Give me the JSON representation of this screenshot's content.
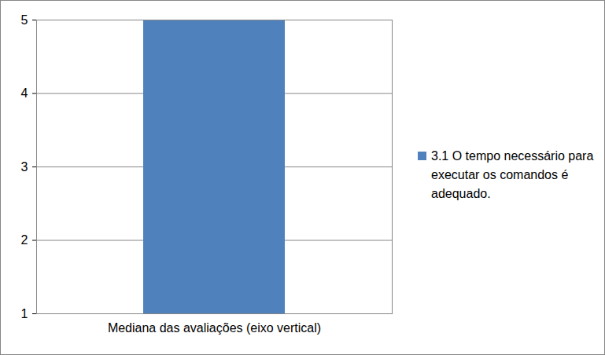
{
  "chart_data": {
    "type": "bar",
    "categories": [
      "Mediana das avaliações (eixo vertical)"
    ],
    "series": [
      {
        "name": "3.1 O tempo necessário para executar os comandos é adequado.",
        "color": "#4f81bd",
        "values": [
          5
        ]
      }
    ],
    "ylim": [
      1,
      5
    ],
    "yticks": [
      1,
      2,
      3,
      4,
      5
    ],
    "grid": true,
    "legend": "right"
  }
}
